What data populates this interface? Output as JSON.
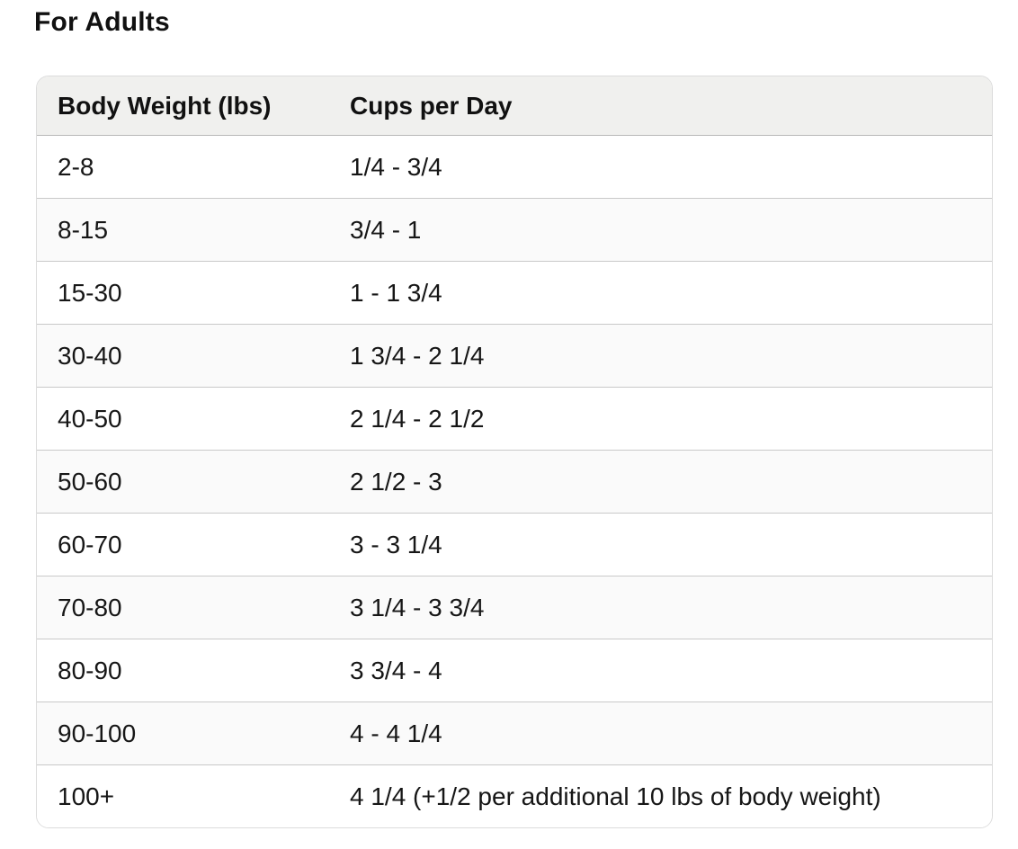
{
  "chart_data": {
    "type": "table",
    "title": "For Adults",
    "columns": [
      "Body Weight (lbs)",
      "Cups per Day"
    ],
    "rows": [
      [
        "2-8",
        "1/4 - 3/4"
      ],
      [
        "8-15",
        "3/4 - 1"
      ],
      [
        "15-30",
        "1 - 1 3/4"
      ],
      [
        "30-40",
        "1 3/4 - 2 1/4"
      ],
      [
        "40-50",
        "2 1/4 - 2 1/2"
      ],
      [
        "50-60",
        "2 1/2 - 3"
      ],
      [
        "60-70",
        "3 - 3 1/4"
      ],
      [
        "70-80",
        "3 1/4 - 3 3/4"
      ],
      [
        "80-90",
        "3 3/4 - 4"
      ],
      [
        "90-100",
        "4 - 4 1/4"
      ],
      [
        "100+",
        "4 1/4 (+1/2 per additional 10 lbs of body weight)"
      ]
    ]
  },
  "colors": {
    "header_bg": "#f0f0ee",
    "alt_row_bg": "#fafafa",
    "row_border": "#c9c9c9",
    "header_border": "#b9b9b9",
    "card_border": "#dcdcdc",
    "text": "#161616"
  }
}
